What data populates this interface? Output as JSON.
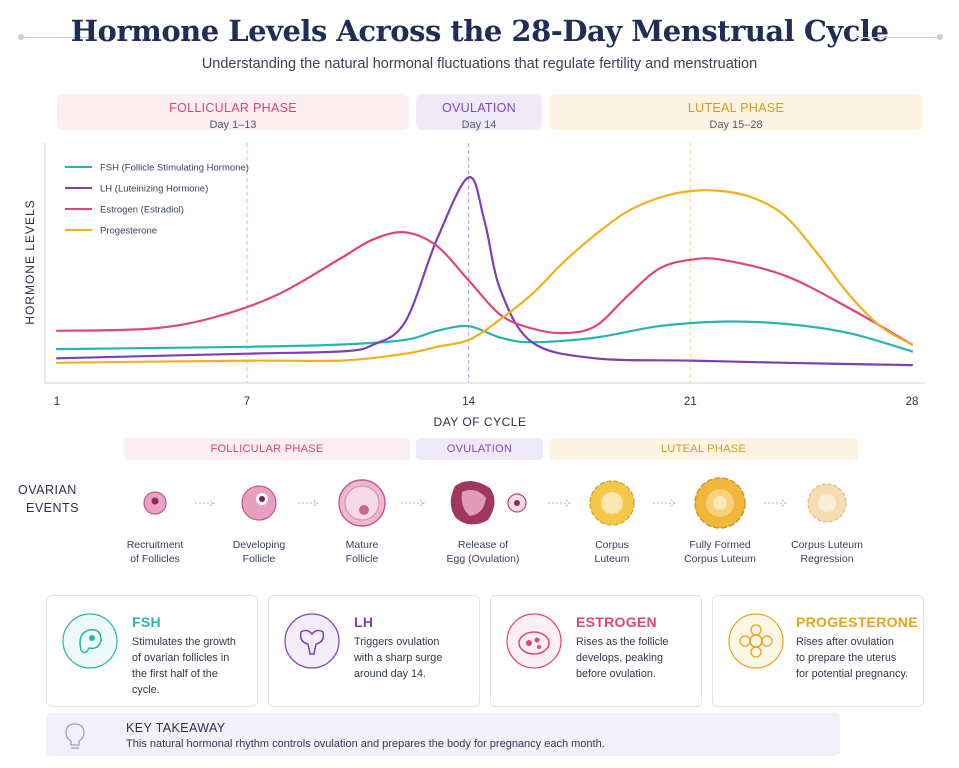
{
  "header": {
    "title": "Hormone Levels Across the 28-Day Menstrual Cycle",
    "subtitle": "Understanding the natural hormonal fluctuations that regulate fertility and menstruation"
  },
  "phases": [
    {
      "name": "FOLLICULAR PHASE",
      "days": "Day 1–13",
      "color": "#d6457a",
      "bg": "#fdeef2"
    },
    {
      "name": "OVULATION",
      "days": "Day 14",
      "color": "#7b4bbd",
      "bg": "#efe9f8"
    },
    {
      "name": "LUTEAL PHASE",
      "days": "Day 15–28",
      "color": "#d69a1a",
      "bg": "#fdf4e3"
    }
  ],
  "chart_data": {
    "type": "line",
    "ylabel": "HORMONE LEVELS",
    "xlabel": "DAY OF CYCLE",
    "xlim": [
      1,
      28
    ],
    "ylim": [
      0,
      100
    ],
    "xticks": [
      1,
      7,
      14,
      21,
      28
    ],
    "legend_position": "top-left",
    "series": [
      {
        "name": "FSH (Follicle Stimulating Hormone)",
        "color": "#26b5b0",
        "points": [
          [
            1,
            10
          ],
          [
            7,
            11
          ],
          [
            10,
            12
          ],
          [
            12,
            14
          ],
          [
            13,
            18
          ],
          [
            14,
            20
          ],
          [
            15,
            15
          ],
          [
            16,
            13
          ],
          [
            18,
            15
          ],
          [
            20,
            20
          ],
          [
            22,
            22
          ],
          [
            24,
            21
          ],
          [
            26,
            17
          ],
          [
            28,
            9
          ]
        ]
      },
      {
        "name": "LH (Luteinizing Hormone)",
        "color": "#7d3fb5",
        "points": [
          [
            1,
            6
          ],
          [
            7,
            8
          ],
          [
            10,
            9
          ],
          [
            11,
            12
          ],
          [
            12,
            22
          ],
          [
            13,
            58
          ],
          [
            14,
            85
          ],
          [
            14.5,
            66
          ],
          [
            15,
            36
          ],
          [
            16,
            13
          ],
          [
            18,
            6
          ],
          [
            21,
            5
          ],
          [
            24,
            4
          ],
          [
            28,
            3
          ]
        ]
      },
      {
        "name": "Estrogen (Estradiol)",
        "color": "#e0457a",
        "points": [
          [
            1,
            18
          ],
          [
            4,
            19
          ],
          [
            6,
            24
          ],
          [
            8,
            34
          ],
          [
            10,
            50
          ],
          [
            11,
            58
          ],
          [
            12,
            61
          ],
          [
            13,
            55
          ],
          [
            14,
            40
          ],
          [
            15,
            25
          ],
          [
            16,
            19
          ],
          [
            17,
            17
          ],
          [
            18,
            20
          ],
          [
            19,
            33
          ],
          [
            20,
            45
          ],
          [
            21,
            49
          ],
          [
            22,
            49
          ],
          [
            24,
            42
          ],
          [
            26,
            28
          ],
          [
            28,
            12
          ]
        ]
      },
      {
        "name": "Progesterone",
        "color": "#f2b01e",
        "points": [
          [
            1,
            4
          ],
          [
            7,
            5
          ],
          [
            10,
            5
          ],
          [
            12,
            8
          ],
          [
            13,
            11
          ],
          [
            14,
            14
          ],
          [
            15,
            23
          ],
          [
            16,
            34
          ],
          [
            17,
            48
          ],
          [
            18,
            60
          ],
          [
            19,
            70
          ],
          [
            20,
            76
          ],
          [
            21,
            79
          ],
          [
            22,
            79
          ],
          [
            23,
            76
          ],
          [
            24,
            68
          ],
          [
            25,
            52
          ],
          [
            26,
            34
          ],
          [
            27,
            20
          ],
          [
            28,
            12
          ]
        ]
      }
    ]
  },
  "ovarian": {
    "label_line1": "OVARIAN",
    "label_line2": "EVENTS",
    "strip": [
      "FOLLICULAR PHASE",
      "OVULATION",
      "LUTEAL PHASE"
    ],
    "stages": [
      {
        "line1": "Recruitment",
        "line2": "of Follicles",
        "icon": "small-follicle-icon"
      },
      {
        "line1": "Developing",
        "line2": "Follicle",
        "icon": "developing-follicle-icon"
      },
      {
        "line1": "Mature",
        "line2": "Follicle",
        "icon": "mature-follicle-icon"
      },
      {
        "line1": "Release of",
        "line2": "Egg (Ovulation)",
        "icon": "egg-release-icon"
      },
      {
        "line1": "Corpus",
        "line2": "Luteum",
        "icon": "corpus-luteum-icon"
      },
      {
        "line1": "Fully Formed",
        "line2": "Corpus Luteum",
        "icon": "full-corpus-luteum-icon"
      },
      {
        "line1": "Corpus Luteum",
        "line2": "Regression",
        "icon": "regressing-corpus-luteum-icon"
      }
    ]
  },
  "cards": [
    {
      "title": "FSH",
      "color": "#26b5b0",
      "icon": "follicle-stimulation-icon",
      "lines": [
        "Stimulates the growth",
        "of ovarian follicles in",
        "the first half of the",
        "cycle."
      ]
    },
    {
      "title": "LH",
      "color": "#7d3fb5",
      "icon": "uterus-icon",
      "lines": [
        "Triggers ovulation",
        "with a sharp surge",
        "around day 14."
      ]
    },
    {
      "title": "ESTROGEN",
      "color": "#e0457a",
      "icon": "ovary-follicles-icon",
      "lines": [
        "Rises as the follicle",
        "develops, peaking",
        "before ovulation."
      ]
    },
    {
      "title": "PROGESTERONE",
      "color": "#e8a418",
      "icon": "corpus-luteum-flower-icon",
      "lines": [
        "Rises after ovulation",
        "to prepare the uterus",
        "for potential pregnancy."
      ]
    }
  ],
  "takeaway": {
    "title": "KEY TAKEAWAY",
    "text": "This natural hormonal rhythm controls ovulation and prepares the body for pregnancy each month.",
    "icon": "lightbulb-icon"
  }
}
